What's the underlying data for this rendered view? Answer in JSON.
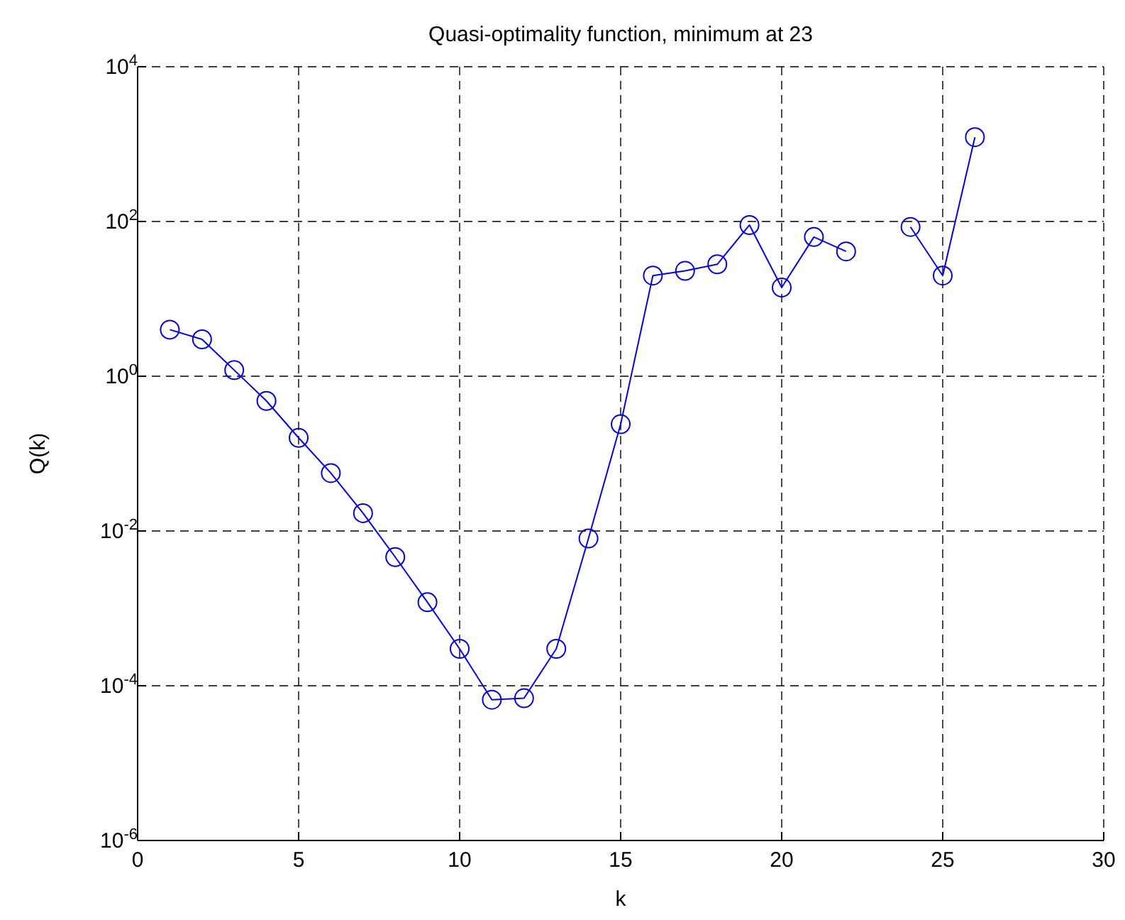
{
  "chart_data": {
    "type": "line",
    "title": "Quasi-optimality function, minimum at 23",
    "xlabel": "k",
    "ylabel": "Q(k)",
    "x": [
      1,
      2,
      3,
      4,
      5,
      6,
      7,
      8,
      9,
      10,
      11,
      12,
      13,
      14,
      15,
      16,
      17,
      18,
      19,
      20,
      21,
      22,
      23,
      24,
      25,
      26
    ],
    "series": [
      {
        "color": "#0000ff",
        "values": [
          4,
          3,
          1.2,
          0.48,
          0.16,
          0.056,
          0.017,
          0.0046,
          0.0012,
          0.0003,
          6.6e-05,
          6.9e-05,
          0.0003,
          0.008,
          0.24,
          20,
          23,
          28,
          90,
          14,
          63,
          41,
          null,
          85,
          20,
          1230
        ]
      }
    ],
    "xlim": [
      0,
      30
    ],
    "xticks": [
      0,
      5,
      10,
      15,
      20,
      25,
      30
    ],
    "ylim": [
      1e-06,
      10000
    ],
    "yticks": [
      {
        "value": 1e-06,
        "label": "10$^{-6}$"
      },
      {
        "value": 0.0001,
        "label": "10$^{-4}$"
      },
      {
        "value": 0.01,
        "label": "10$^{-2}$"
      },
      {
        "value": 1,
        "label": "10$^{0}$"
      },
      {
        "value": 100,
        "label": "10$^{2}$"
      },
      {
        "value": 10000,
        "label": "10$^{4}$"
      }
    ],
    "log": "y",
    "grid": true,
    "marker": "circle",
    "line_style": "solid"
  }
}
